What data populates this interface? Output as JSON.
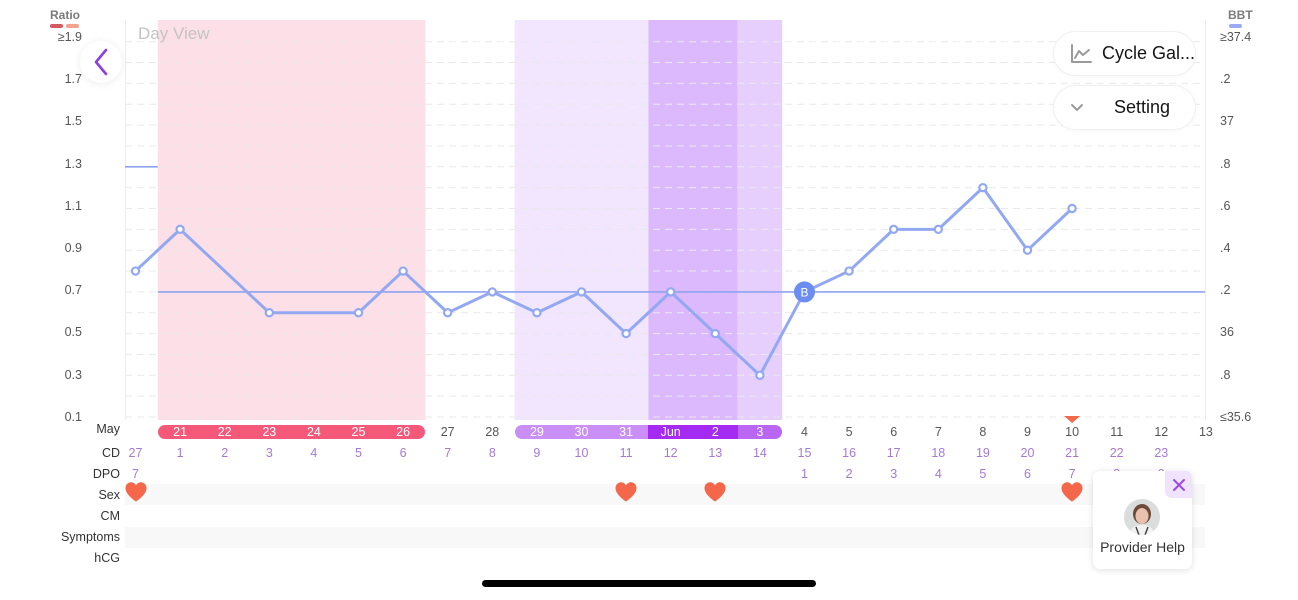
{
  "header": {
    "view_title": "Day View",
    "back_icon": "chevron-left-icon"
  },
  "axes": {
    "left": {
      "title": "Ratio",
      "legend_colors": [
        "#d55a5f",
        "#f5a28c"
      ],
      "ticks": [
        "≥1.9",
        "1.7",
        "1.5",
        "1.3",
        "1.1",
        "0.9",
        "0.7",
        "0.5",
        "0.3",
        "0.1"
      ]
    },
    "right": {
      "title": "BBT",
      "legend_color": "#9aaaf3",
      "ticks": [
        "≥37.4",
        ".2",
        "37",
        ".8",
        ".6",
        ".4",
        ".2",
        "36",
        ".8",
        "≤35.6"
      ]
    }
  },
  "buttons": {
    "cycle_gallery": {
      "label": "Cycle Gal...",
      "icon": "line-chart-icon"
    },
    "setting": {
      "label": "Setting",
      "icon": "chevron-down-icon"
    }
  },
  "rows": {
    "labels": {
      "month": "May",
      "cd": "CD",
      "dpo": "DPO",
      "sex": "Sex",
      "cm": "CM",
      "symptoms": "Symptoms",
      "hcg": "hCG"
    }
  },
  "columns": [
    {
      "date": "",
      "cd": "27",
      "dpo": "7",
      "sex": true
    },
    {
      "date": "21",
      "cd": "1",
      "dpo": "",
      "sex": false
    },
    {
      "date": "22",
      "cd": "2",
      "dpo": "",
      "sex": false
    },
    {
      "date": "23",
      "cd": "3",
      "dpo": "",
      "sex": false
    },
    {
      "date": "24",
      "cd": "4",
      "dpo": "",
      "sex": false
    },
    {
      "date": "25",
      "cd": "5",
      "dpo": "",
      "sex": false
    },
    {
      "date": "26",
      "cd": "6",
      "dpo": "",
      "sex": false
    },
    {
      "date": "27",
      "cd": "7",
      "dpo": "",
      "sex": false
    },
    {
      "date": "28",
      "cd": "8",
      "dpo": "",
      "sex": false
    },
    {
      "date": "29",
      "cd": "9",
      "dpo": "",
      "sex": false
    },
    {
      "date": "30",
      "cd": "10",
      "dpo": "",
      "sex": false
    },
    {
      "date": "31",
      "cd": "11",
      "dpo": "",
      "sex": true
    },
    {
      "date": "Jun",
      "cd": "12",
      "dpo": "",
      "sex": false
    },
    {
      "date": "2",
      "cd": "13",
      "dpo": "",
      "sex": true
    },
    {
      "date": "3",
      "cd": "14",
      "dpo": "",
      "sex": false
    },
    {
      "date": "4",
      "cd": "15",
      "dpo": "1",
      "sex": false
    },
    {
      "date": "5",
      "cd": "16",
      "dpo": "2",
      "sex": false
    },
    {
      "date": "6",
      "cd": "17",
      "dpo": "3",
      "sex": false
    },
    {
      "date": "7",
      "cd": "18",
      "dpo": "4",
      "sex": false
    },
    {
      "date": "8",
      "cd": "19",
      "dpo": "5",
      "sex": false
    },
    {
      "date": "9",
      "cd": "20",
      "dpo": "6",
      "sex": false
    },
    {
      "date": "10",
      "cd": "21",
      "dpo": "7",
      "sex": true
    },
    {
      "date": "11",
      "cd": "22",
      "dpo": "8",
      "sex": false
    },
    {
      "date": "12",
      "cd": "23",
      "dpo": "9",
      "sex": false
    },
    {
      "date": "13",
      "cd": "",
      "dpo": "",
      "sex": false
    }
  ],
  "date_pills": [
    {
      "name": "period",
      "from": 1,
      "to": 6,
      "segments": [
        {
          "from": 1,
          "to": 6,
          "color": "#f6587a"
        }
      ]
    },
    {
      "name": "fertile-window",
      "from": 9,
      "to": 14,
      "segments": [
        {
          "from": 9,
          "to": 11,
          "color": "#c98ff6"
        },
        {
          "from": 12,
          "to": 13,
          "color": "#a52bf2"
        },
        {
          "from": 14,
          "to": 14,
          "color": "#b967f3"
        }
      ]
    }
  ],
  "today_index": 21,
  "colors": {
    "bbt_line": "#93a8f2",
    "coverline": "#8ea3ef",
    "marker_fill": "#6b8df1",
    "heart": "#f4674b",
    "today_marker": "#f4684a",
    "cd_text": "#a57ad6",
    "date_text": "#555555",
    "accent": "#8b3fe2",
    "gridline": "#e9e9e9"
  },
  "chart_data": {
    "type": "line",
    "title": "Day View",
    "categories": [
      "",
      "21",
      "22",
      "23",
      "24",
      "25",
      "26",
      "27",
      "28",
      "29",
      "30",
      "31",
      "Jun",
      "2",
      "3",
      "4",
      "5",
      "6",
      "7",
      "8",
      "9",
      "10",
      "11",
      "12",
      "13"
    ],
    "series": [
      {
        "name": "BBT",
        "values": [
          36.3,
          36.5,
          null,
          36.1,
          null,
          36.1,
          36.3,
          36.1,
          36.2,
          36.1,
          36.2,
          36.0,
          36.2,
          36.0,
          35.8,
          36.2,
          36.3,
          36.5,
          36.5,
          36.7,
          36.4,
          36.6,
          null,
          null,
          null
        ]
      }
    ],
    "ylabel_left": "Ratio",
    "ylabel_right": "BBT",
    "ylim_left": [
      0.1,
      1.9
    ],
    "ylim_right": [
      35.6,
      37.4
    ],
    "coverlines": [
      {
        "value": 36.8,
        "from": 0,
        "to": 0
      },
      {
        "value": 36.2,
        "from": 1,
        "to": 24
      }
    ],
    "markers": [
      {
        "index": 15,
        "label": "B"
      }
    ],
    "bands": [
      {
        "name": "period",
        "from": 1,
        "to": 6,
        "color": "#fde0e7"
      },
      {
        "name": "fertile",
        "from": 9,
        "to": 11,
        "color": "#f1e6fe"
      },
      {
        "name": "peak",
        "from": 12,
        "to": 13,
        "color": "#dcb9fc"
      },
      {
        "name": "ovulation",
        "from": 14,
        "to": 14,
        "color": "#e6cffd"
      }
    ],
    "grid": true,
    "legend_position": "top-corners"
  },
  "provider_help": {
    "label": "Provider Help",
    "close_icon": "close-icon"
  }
}
